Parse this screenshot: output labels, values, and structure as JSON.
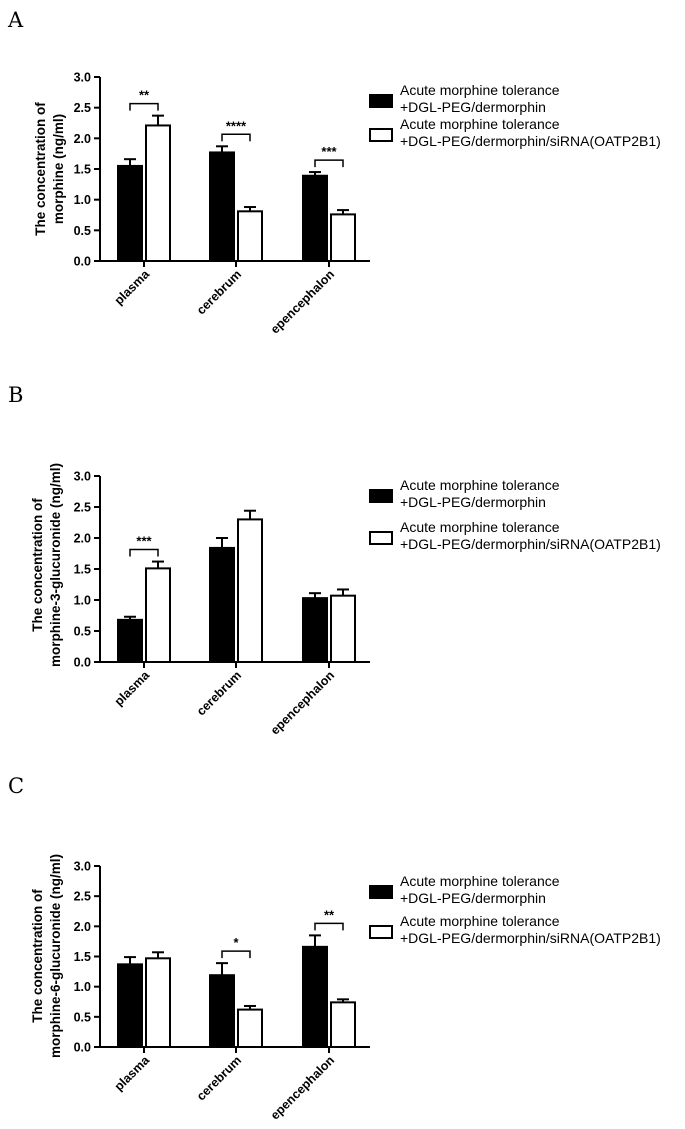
{
  "chart_data": [
    {
      "type": "bar",
      "panel": "A",
      "categories": [
        "plasma",
        "cerebrum",
        "epencephalon"
      ],
      "ylabel_line1": "The concentration of",
      "ylabel_line2": "morphine (ng/ml)",
      "ylim": [
        0,
        3.0
      ],
      "yticks": [
        "0.0",
        "0.5",
        "1.0",
        "1.5",
        "2.0",
        "2.5",
        "3.0"
      ],
      "series": [
        {
          "name_line1": "Acute morphine tolerance",
          "name_line2": "+DGL-PEG/dermorphin",
          "fill": "#000000",
          "values": [
            1.55,
            1.77,
            1.39
          ],
          "errors": [
            0.11,
            0.1,
            0.06
          ]
        },
        {
          "name_line1": "Acute morphine tolerance",
          "name_line2": "+DGL-PEG/dermorphin/siRNA(OATP2B1)",
          "fill": "#ffffff",
          "values": [
            2.21,
            0.81,
            0.76
          ],
          "errors": [
            0.16,
            0.07,
            0.07
          ]
        }
      ],
      "significance": [
        {
          "category": 0,
          "label": "**"
        },
        {
          "category": 1,
          "label": "****"
        },
        {
          "category": 2,
          "label": "***"
        }
      ]
    },
    {
      "type": "bar",
      "panel": "B",
      "categories": [
        "plasma",
        "cerebrum",
        "epencephalon"
      ],
      "ylabel_line1": "The concentration of",
      "ylabel_line2": "morphine-3-glucuronide (ng/ml)",
      "ylim": [
        0,
        3.0
      ],
      "yticks": [
        "0.0",
        "0.5",
        "1.0",
        "1.5",
        "2.0",
        "2.5",
        "3.0"
      ],
      "series": [
        {
          "name_line1": "Acute morphine tolerance",
          "name_line2": "+DGL-PEG/dermorphin",
          "fill": "#000000",
          "values": [
            0.68,
            1.84,
            1.03
          ],
          "errors": [
            0.05,
            0.16,
            0.08
          ]
        },
        {
          "name_line1": "Acute morphine tolerance",
          "name_line2": "+DGL-PEG/dermorphin/siRNA(OATP2B1)",
          "fill": "#ffffff",
          "values": [
            1.51,
            2.3,
            1.07
          ],
          "errors": [
            0.11,
            0.14,
            0.1
          ]
        }
      ],
      "significance": [
        {
          "category": 0,
          "label": "***"
        }
      ]
    },
    {
      "type": "bar",
      "panel": "C",
      "categories": [
        "plasma",
        "cerebrum",
        "epencephalon"
      ],
      "ylabel_line1": "The concentration of",
      "ylabel_line2": "morphine-6-glucuronide (ng/ml)",
      "ylim": [
        0,
        3.0
      ],
      "yticks": [
        "0.0",
        "0.5",
        "1.0",
        "1.5",
        "2.0",
        "2.5",
        "3.0"
      ],
      "series": [
        {
          "name_line1": "Acute morphine tolerance",
          "name_line2": "+DGL-PEG/dermorphin",
          "fill": "#000000",
          "values": [
            1.37,
            1.19,
            1.66
          ],
          "errors": [
            0.12,
            0.2,
            0.19
          ]
        },
        {
          "name_line1": "Acute morphine tolerance",
          "name_line2": "+DGL-PEG/dermorphin/siRNA(OATP2B1)",
          "fill": "#ffffff",
          "values": [
            1.47,
            0.62,
            0.74
          ],
          "errors": [
            0.1,
            0.06,
            0.05
          ]
        }
      ],
      "significance": [
        {
          "category": 1,
          "label": "*"
        },
        {
          "category": 2,
          "label": "**"
        }
      ]
    }
  ]
}
